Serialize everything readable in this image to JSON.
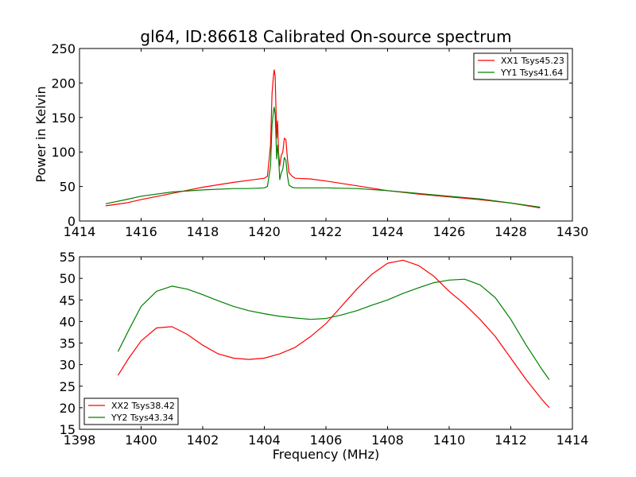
{
  "chart_data": [
    {
      "type": "line",
      "title": "gl64, ID:86618 Calibrated On-source spectrum",
      "xlabel": "",
      "ylabel": "Power in Kelvin",
      "xlim": [
        1414,
        1430
      ],
      "ylim": [
        0,
        250
      ],
      "xticks": [
        1414,
        1416,
        1418,
        1420,
        1422,
        1424,
        1426,
        1428,
        1430
      ],
      "yticks": [
        0,
        50,
        100,
        150,
        200,
        250
      ],
      "legend_position": "top-right",
      "series": [
        {
          "name": "XX1 Tsys45.23",
          "color": "#ff0000",
          "x": [
            1414.85,
            1415.5,
            1416.0,
            1417.0,
            1418.0,
            1419.0,
            1419.5,
            1420.0,
            1420.1,
            1420.2,
            1420.25,
            1420.3,
            1420.32,
            1420.35,
            1420.38,
            1420.4,
            1420.43,
            1420.46,
            1420.5,
            1420.55,
            1420.6,
            1420.65,
            1420.7,
            1420.75,
            1420.8,
            1420.9,
            1421.0,
            1421.5,
            1422.0,
            1423.0,
            1424.0,
            1425.0,
            1426.0,
            1427.0,
            1428.0,
            1428.95
          ],
          "y": [
            22,
            26,
            31,
            40,
            49,
            56,
            59,
            62,
            65,
            110,
            185,
            212,
            219,
            210,
            160,
            120,
            145,
            100,
            80,
            95,
            100,
            120,
            118,
            90,
            70,
            65,
            62,
            61,
            58,
            51,
            44,
            39,
            35,
            31,
            26,
            19
          ]
        },
        {
          "name": "YY1 Tsys41.64",
          "color": "#008000",
          "x": [
            1414.85,
            1415.5,
            1416.0,
            1417.0,
            1418.0,
            1419.0,
            1419.5,
            1420.0,
            1420.1,
            1420.2,
            1420.25,
            1420.3,
            1420.32,
            1420.35,
            1420.38,
            1420.4,
            1420.43,
            1420.46,
            1420.5,
            1420.55,
            1420.6,
            1420.65,
            1420.7,
            1420.75,
            1420.8,
            1420.9,
            1421.0,
            1422.0,
            1423.0,
            1424.0,
            1425.0,
            1426.0,
            1427.0,
            1428.0,
            1428.95
          ],
          "y": [
            25,
            31,
            36,
            42,
            45,
            47,
            47,
            48,
            50,
            80,
            140,
            160,
            165,
            155,
            120,
            90,
            110,
            95,
            60,
            70,
            75,
            92,
            88,
            65,
            52,
            49,
            48,
            48,
            47,
            44,
            40,
            36,
            32,
            26,
            20
          ]
        }
      ]
    },
    {
      "type": "line",
      "title": "",
      "xlabel": "Frequency (MHz)",
      "ylabel": "",
      "xlim": [
        1398,
        1414
      ],
      "ylim": [
        15,
        55
      ],
      "xticks": [
        1398,
        1400,
        1402,
        1404,
        1406,
        1408,
        1410,
        1412,
        1414
      ],
      "yticks": [
        15,
        20,
        25,
        30,
        35,
        40,
        45,
        50,
        55
      ],
      "legend_position": "bottom-left",
      "series": [
        {
          "name": "XX2 Tsys38.42",
          "color": "#ff0000",
          "x": [
            1399.25,
            1399.6,
            1400.0,
            1400.5,
            1401.0,
            1401.5,
            1402.0,
            1402.5,
            1403.0,
            1403.5,
            1404.0,
            1404.5,
            1405.0,
            1405.5,
            1406.0,
            1406.5,
            1407.0,
            1407.5,
            1408.0,
            1408.5,
            1409.0,
            1409.5,
            1410.0,
            1410.5,
            1411.0,
            1411.5,
            1412.0,
            1412.5,
            1413.0,
            1413.25
          ],
          "y": [
            27.5,
            31.5,
            35.5,
            38.5,
            38.8,
            37.0,
            34.5,
            32.5,
            31.5,
            31.2,
            31.5,
            32.5,
            34.0,
            36.5,
            39.5,
            43.5,
            47.5,
            51.0,
            53.5,
            54.2,
            53.0,
            50.5,
            47.0,
            44.0,
            40.5,
            36.5,
            31.5,
            26.5,
            22.0,
            20.0
          ]
        },
        {
          "name": "YY2 Tsys43.34",
          "color": "#008000",
          "x": [
            1399.25,
            1399.6,
            1400.0,
            1400.5,
            1401.0,
            1401.5,
            1402.0,
            1402.5,
            1403.0,
            1403.5,
            1404.0,
            1404.5,
            1405.0,
            1405.5,
            1406.0,
            1406.5,
            1407.0,
            1407.5,
            1408.0,
            1408.5,
            1409.0,
            1409.5,
            1410.0,
            1410.5,
            1411.0,
            1411.5,
            1412.0,
            1412.5,
            1413.0,
            1413.25
          ],
          "y": [
            33.0,
            38.0,
            43.5,
            47.0,
            48.2,
            47.5,
            46.2,
            44.8,
            43.5,
            42.5,
            41.8,
            41.2,
            40.8,
            40.5,
            40.7,
            41.5,
            42.5,
            43.8,
            45.0,
            46.5,
            47.8,
            49.0,
            49.6,
            49.8,
            48.5,
            45.5,
            40.5,
            34.5,
            29.0,
            26.5
          ]
        }
      ]
    }
  ]
}
